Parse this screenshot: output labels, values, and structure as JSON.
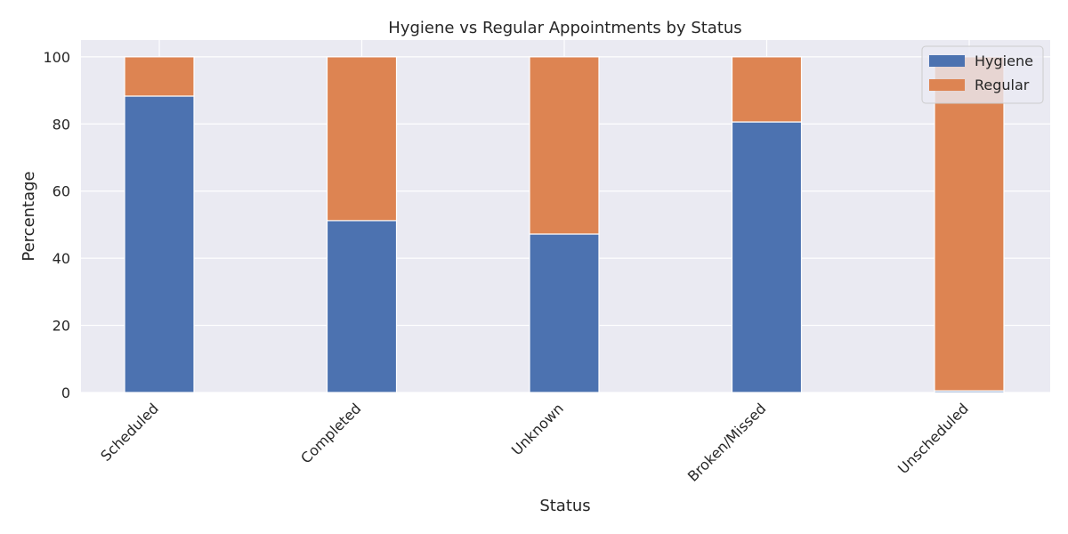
{
  "chart_data": {
    "type": "bar",
    "stacked": true,
    "title": "Hygiene vs Regular Appointments by Status",
    "xlabel": "Status",
    "ylabel": "Percentage",
    "ylim": [
      0,
      105
    ],
    "yticks": [
      0,
      20,
      40,
      60,
      80,
      100
    ],
    "grid": true,
    "legend_position": "top-right",
    "categories": [
      "Scheduled",
      "Completed",
      "Unknown",
      "Broken/Missed",
      "Unscheduled"
    ],
    "series": [
      {
        "name": "Hygiene",
        "color": "#4c72b0",
        "values": [
          88.3,
          51.2,
          47.2,
          80.6,
          0.5
        ]
      },
      {
        "name": "Regular",
        "color": "#dd8452",
        "values": [
          11.7,
          48.8,
          52.8,
          19.4,
          99.5
        ]
      }
    ],
    "colors": {
      "background": "#eaeaf2",
      "grid": "#ffffff",
      "text": "#262626"
    }
  }
}
